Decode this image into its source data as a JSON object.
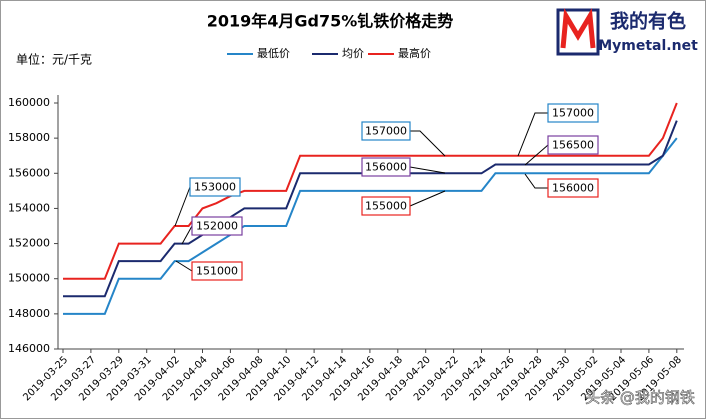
{
  "chart_data": {
    "type": "line",
    "title": "2019年4月Gd75%钆铁价格走势",
    "unit_label": "单位：元/千克",
    "logo": {
      "name": "我的有色",
      "site": "Mymetal.net"
    },
    "watermark": "头条 @我的钢铁",
    "categories": [
      "2019-03-25",
      null,
      "2019-03-27",
      null,
      "2019-03-29",
      null,
      "2019-03-31",
      null,
      "2019-04-02",
      null,
      "2019-04-04",
      null,
      "2019-04-06",
      null,
      "2019-04-08",
      null,
      "2019-04-10",
      null,
      "2019-04-12",
      null,
      "2019-04-14",
      null,
      "2019-04-16",
      null,
      "2019-04-18",
      null,
      "2019-04-20",
      null,
      "2019-04-22",
      null,
      "2019-04-24",
      null,
      "2019-04-26",
      null,
      "2019-04-28",
      null,
      "2019-04-30",
      null,
      "2019-05-02",
      null,
      "2019-05-04",
      null,
      "2019-05-06",
      null,
      "2019-05-08"
    ],
    "series": [
      {
        "name": "最低价",
        "color": "#2585c8",
        "values": [
          148000,
          148000,
          148000,
          148000,
          150000,
          150000,
          150000,
          150000,
          151000,
          151000,
          151500,
          152000,
          152500,
          153000,
          153000,
          153000,
          153000,
          155000,
          155000,
          155000,
          155000,
          155000,
          155000,
          155000,
          155000,
          155000,
          155000,
          155000,
          155000,
          155000,
          155000,
          156000,
          156000,
          156000,
          156000,
          156000,
          156000,
          156000,
          156000,
          156000,
          156000,
          156000,
          156000,
          157000,
          158000
        ]
      },
      {
        "name": "均价",
        "color": "#1b2a6e",
        "values": [
          149000,
          149000,
          149000,
          149000,
          151000,
          151000,
          151000,
          151000,
          152000,
          152000,
          152500,
          153000,
          153500,
          154000,
          154000,
          154000,
          154000,
          156000,
          156000,
          156000,
          156000,
          156000,
          156000,
          156000,
          156000,
          156000,
          156000,
          156000,
          156000,
          156000,
          156000,
          156500,
          156500,
          156500,
          156500,
          156500,
          156500,
          156500,
          156500,
          156500,
          156500,
          156500,
          156500,
          157000,
          159000
        ]
      },
      {
        "name": "最高价",
        "color": "#e8231f",
        "values": [
          150000,
          150000,
          150000,
          150000,
          152000,
          152000,
          152000,
          152000,
          153000,
          153000,
          154000,
          154300,
          154700,
          155000,
          155000,
          155000,
          155000,
          157000,
          157000,
          157000,
          157000,
          157000,
          157000,
          157000,
          157000,
          157000,
          157000,
          157000,
          157000,
          157000,
          157000,
          157000,
          157000,
          157000,
          157000,
          157000,
          157000,
          157000,
          157000,
          157000,
          157000,
          157000,
          157000,
          158000,
          160000
        ]
      }
    ],
    "ylim": [
      146000,
      160000
    ],
    "yticks": [
      146000,
      148000,
      150000,
      152000,
      154000,
      156000,
      158000,
      160000
    ],
    "grid": false,
    "legend": "top",
    "annotations": [
      {
        "value": 153000,
        "color": "#2585c8"
      },
      {
        "value": 152000,
        "color": "#7a3fa0"
      },
      {
        "value": 151000,
        "color": "#e8231f"
      },
      {
        "value": 157000,
        "color": "#2585c8"
      },
      {
        "value": 156000,
        "color": "#7a3fa0"
      },
      {
        "value": 155000,
        "color": "#e8231f"
      },
      {
        "value": 157000,
        "color": "#2585c8"
      },
      {
        "value": 156500,
        "color": "#7a3fa0"
      },
      {
        "value": 156000,
        "color": "#e8231f"
      }
    ]
  }
}
